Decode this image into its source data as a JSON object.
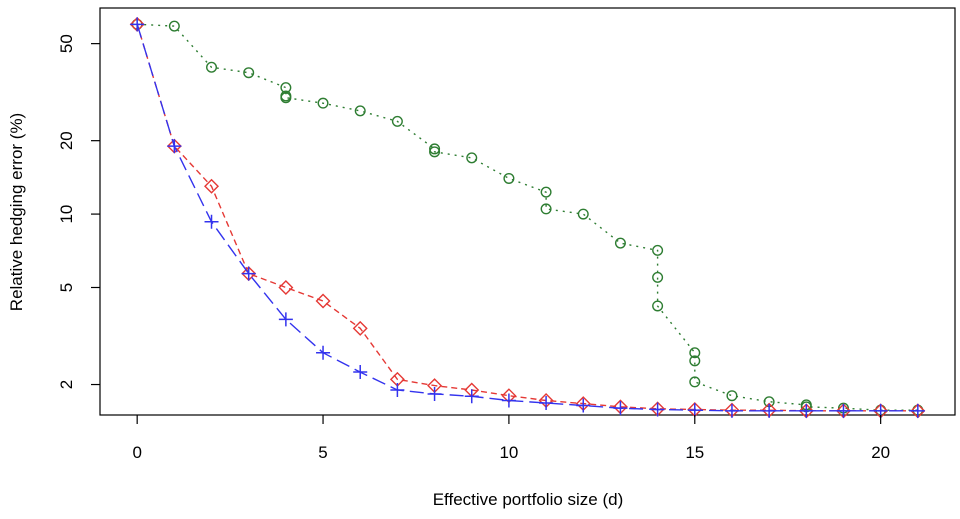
{
  "chart_data": {
    "type": "line",
    "title": "",
    "xlabel": "Effective portfolio size (d)",
    "ylabel": "Relative hedging error (%)",
    "xlim": [
      -1,
      22
    ],
    "ylim": [
      1.5,
      70
    ],
    "yscale": "log",
    "grid": false,
    "legend": "none",
    "xticks": [
      "0",
      "5",
      "10",
      "15",
      "20"
    ],
    "yticks": [
      "2",
      "5",
      "10",
      "20",
      "50"
    ],
    "series": [
      {
        "color": "#2e7d32",
        "marker": "circle",
        "linestyle": "dotted",
        "points": [
          [
            0,
            60
          ],
          [
            1,
            59
          ],
          [
            2,
            40
          ],
          [
            3,
            38
          ],
          [
            4,
            33
          ],
          [
            4,
            30.5
          ],
          [
            4,
            30
          ],
          [
            5,
            28.5
          ],
          [
            6,
            26.5
          ],
          [
            7,
            24
          ],
          [
            8,
            18.5
          ],
          [
            8,
            18
          ],
          [
            9,
            17
          ],
          [
            10,
            14
          ],
          [
            11,
            12.3
          ],
          [
            11,
            10.5
          ],
          [
            12,
            10
          ],
          [
            13,
            7.6
          ],
          [
            14,
            7.1
          ],
          [
            14,
            5.5
          ],
          [
            14,
            4.2
          ],
          [
            15,
            2.7
          ],
          [
            15,
            2.5
          ],
          [
            15,
            2.05
          ],
          [
            16,
            1.8
          ],
          [
            17,
            1.7
          ],
          [
            18,
            1.65
          ],
          [
            18,
            1.62
          ],
          [
            19,
            1.6
          ],
          [
            20,
            1.57
          ],
          [
            21,
            1.57
          ]
        ]
      },
      {
        "color": "#e53935",
        "marker": "diamond",
        "linestyle": "dashed",
        "points": [
          [
            0,
            60
          ],
          [
            1,
            19
          ],
          [
            2,
            13
          ],
          [
            3,
            5.7
          ],
          [
            4,
            5
          ],
          [
            5,
            4.4
          ],
          [
            6,
            3.4
          ],
          [
            7,
            2.1
          ],
          [
            8,
            1.98
          ],
          [
            9,
            1.9
          ],
          [
            10,
            1.8
          ],
          [
            11,
            1.72
          ],
          [
            12,
            1.67
          ],
          [
            13,
            1.62
          ],
          [
            14,
            1.59
          ],
          [
            15,
            1.58
          ],
          [
            16,
            1.57
          ],
          [
            17,
            1.57
          ],
          [
            18,
            1.56
          ],
          [
            19,
            1.56
          ],
          [
            20,
            1.56
          ],
          [
            21,
            1.56
          ]
        ]
      },
      {
        "color": "#3333ee",
        "marker": "plus",
        "linestyle": "longdash",
        "points": [
          [
            0,
            60
          ],
          [
            1,
            19
          ],
          [
            2,
            9.3
          ],
          [
            3,
            5.7
          ],
          [
            4,
            3.7
          ],
          [
            5,
            2.7
          ],
          [
            6,
            2.25
          ],
          [
            7,
            1.9
          ],
          [
            8,
            1.83
          ],
          [
            9,
            1.79
          ],
          [
            10,
            1.72
          ],
          [
            11,
            1.68
          ],
          [
            12,
            1.64
          ],
          [
            13,
            1.6
          ],
          [
            14,
            1.58
          ],
          [
            15,
            1.57
          ],
          [
            16,
            1.56
          ],
          [
            17,
            1.56
          ],
          [
            18,
            1.56
          ],
          [
            19,
            1.56
          ],
          [
            20,
            1.56
          ],
          [
            21,
            1.56
          ]
        ]
      }
    ]
  }
}
